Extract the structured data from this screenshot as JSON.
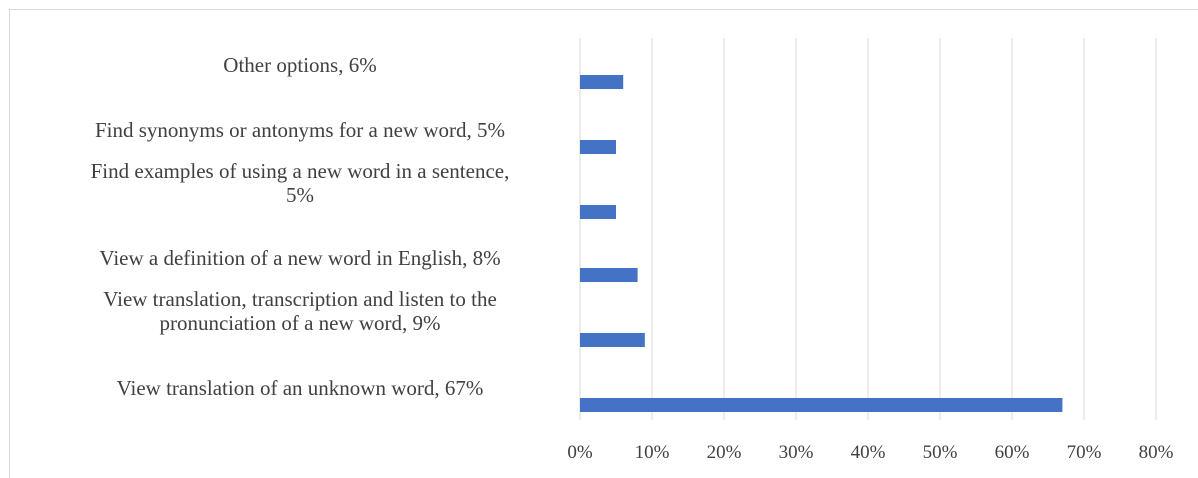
{
  "chart_data": {
    "type": "bar",
    "orientation": "horizontal",
    "categories": [
      "View translation of an unknown word, 67%",
      "View translation, transcription and listen to the pronunciation of a new word, 9%",
      "View a definition of a new word in English, 8%",
      "Find examples of using a new word in a sentence, 5%",
      "Find synonyms or antonyms for a new word, 5%",
      "Other options, 6%"
    ],
    "category_lines": [
      [
        "View translation of an unknown word, 67%"
      ],
      [
        "View translation, transcription and listen to the",
        "pronunciation of a new word, 9%"
      ],
      [
        "View a definition of a new word in English, 8%"
      ],
      [
        "Find examples of using a new word in a sentence,",
        "5%"
      ],
      [
        "Find synonyms or antonyms for a new word, 5%"
      ],
      [
        "Other options, 6%"
      ]
    ],
    "values": [
      67,
      9,
      8,
      5,
      5,
      6
    ],
    "unit": "%",
    "xlim": [
      0,
      80
    ],
    "xticks": [
      "0%",
      "10%",
      "20%",
      "30%",
      "40%",
      "50%",
      "60%",
      "70%",
      "80%"
    ],
    "title": "",
    "xlabel": "",
    "ylabel": "",
    "grid": "vertical",
    "legend": "none",
    "bar_color": "#4472c4",
    "grid_color": "#d9d9d9",
    "label_color": "#404040"
  }
}
